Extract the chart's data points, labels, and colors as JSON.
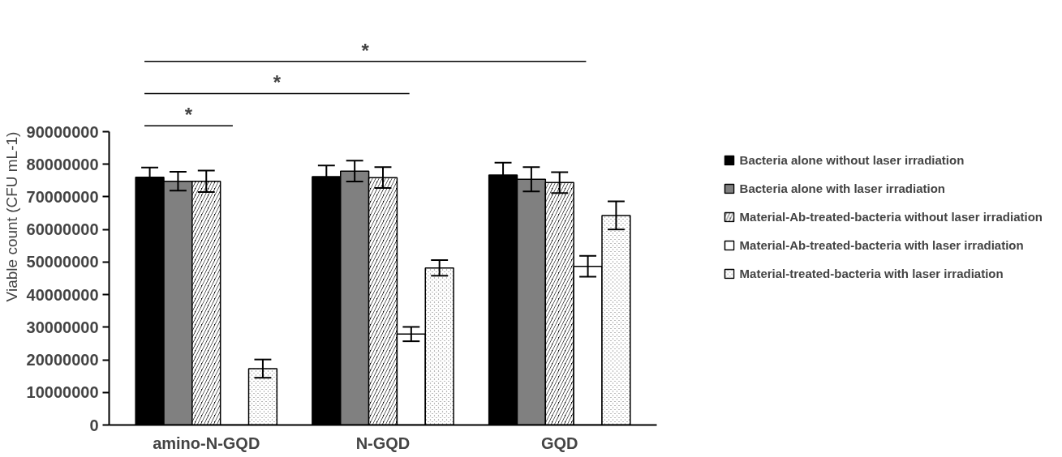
{
  "chart_data": {
    "type": "bar",
    "ylabel": "Viable count (CFU mL-1)",
    "categories": [
      "amino-N-GQD",
      "N-GQD",
      "GQD"
    ],
    "series": [
      {
        "name": "Bacteria alone without laser irradiation",
        "color": "#000000",
        "values": [
          76000000,
          76200000,
          76700000
        ],
        "errors": [
          3000000,
          3400000,
          3800000
        ]
      },
      {
        "name": "Bacteria alone with laser irradiation",
        "color": "#808080",
        "values": [
          74800000,
          77900000,
          75400000
        ],
        "errors": [
          2900000,
          3200000,
          3700000
        ]
      },
      {
        "name": "Material-Ab-treated-bacteria without laser irradiation",
        "color": "#000000",
        "values": [
          74800000,
          75900000,
          74400000
        ],
        "errors": [
          3300000,
          3200000,
          3200000
        ]
      },
      {
        "name": "Material-Ab-treated-bacteria with laser irradiation",
        "color": "#ffffff",
        "values": [
          null,
          27900000,
          48700000
        ],
        "errors": [
          null,
          2200000,
          3200000
        ]
      },
      {
        "name": "Material-treated-bacteria with laser irradiation",
        "color": "#a0a0a0",
        "values": [
          17300000,
          48200000,
          64300000
        ],
        "errors": [
          2800000,
          2400000,
          4300000
        ]
      }
    ],
    "ylim": [
      0,
      90000000
    ],
    "yticks": [
      0,
      10000000,
      20000000,
      30000000,
      40000000,
      50000000,
      60000000,
      70000000,
      80000000,
      90000000
    ],
    "grid": false,
    "legend": "right",
    "annotations": [
      "*",
      "*",
      "*"
    ]
  }
}
